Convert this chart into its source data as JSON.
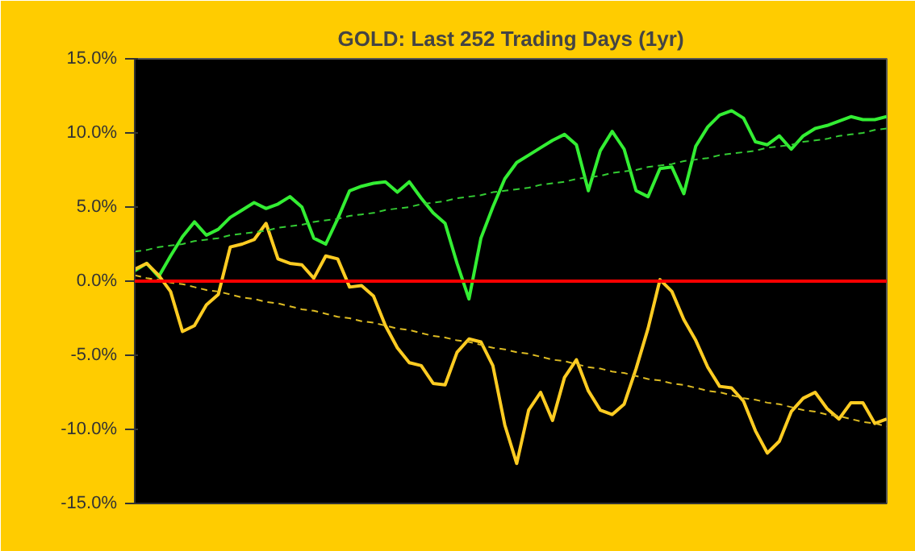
{
  "chart_data": {
    "type": "line",
    "title": "GOLD: Last 252 Trading Days (1yr)",
    "categories": [
      null,
      null,
      null,
      null,
      null,
      null,
      null,
      null,
      null,
      null,
      null,
      null,
      null,
      null,
      null,
      null,
      null,
      null,
      null,
      null,
      null,
      null,
      null,
      null,
      null,
      null,
      null,
      null,
      null,
      null,
      null,
      null,
      null,
      null,
      null,
      null,
      null,
      null,
      null,
      null,
      null,
      null,
      null,
      null,
      null,
      null,
      null,
      null,
      null,
      null,
      null,
      null,
      null,
      null,
      null,
      null,
      null,
      null,
      null,
      null,
      null,
      null,
      null,
      null
    ],
    "ylim": [
      -15,
      15
    ],
    "yticks": [
      {
        "value": -15,
        "label": "-15.0%"
      },
      {
        "value": -10,
        "label": "-10.0%"
      },
      {
        "value": -5,
        "label": "-5.0%"
      },
      {
        "value": 0,
        "label": "0.0%"
      },
      {
        "value": 5,
        "label": "5.0%"
      },
      {
        "value": 10,
        "label": "10.0%"
      },
      {
        "value": 15,
        "label": "15.0%"
      }
    ],
    "tick_labels": "y",
    "grid": false,
    "marker": "none",
    "ref_lines": [
      {
        "axis": "y",
        "value": 0,
        "color": "#ff0000",
        "line_style": "solid"
      }
    ],
    "series": [
      {
        "color": "#33ee33",
        "line_style": "solid",
        "values": [
          0.7,
          1.2,
          0.3,
          1.7,
          3.0,
          4.0,
          3.1,
          3.5,
          4.3,
          4.8,
          5.3,
          4.9,
          5.2,
          5.7,
          5.0,
          2.9,
          2.5,
          4.2,
          6.1,
          6.4,
          6.6,
          6.7,
          6.0,
          6.7,
          5.6,
          4.6,
          3.9,
          1.2,
          -1.2,
          2.9,
          5.0,
          6.9,
          8.0,
          8.5,
          9.0,
          9.5,
          9.9,
          9.2,
          6.1,
          8.8,
          10.1,
          8.9,
          6.1,
          5.7,
          7.6,
          7.7,
          5.9,
          9.1,
          10.4,
          11.2,
          11.5,
          11.0,
          9.4,
          9.2,
          9.8,
          8.9,
          9.8,
          10.3,
          10.5,
          10.8,
          11.1,
          10.9,
          10.9,
          11.1
        ]
      },
      {
        "color": "#ffcc22",
        "line_style": "solid",
        "values": [
          0.8,
          1.2,
          0.4,
          -0.7,
          -3.4,
          -3.0,
          -1.6,
          -0.9,
          2.3,
          2.5,
          2.8,
          3.9,
          1.5,
          1.2,
          1.1,
          0.2,
          1.7,
          1.5,
          -0.4,
          -0.3,
          -1.0,
          -3.0,
          -4.5,
          -5.5,
          -5.7,
          -6.9,
          -7.0,
          -4.8,
          -3.9,
          -4.1,
          -5.7,
          -9.7,
          -12.3,
          -8.7,
          -7.5,
          -9.4,
          -6.5,
          -5.3,
          -7.4,
          -8.7,
          -9.0,
          -8.3,
          -5.9,
          -3.2,
          0.1,
          -0.7,
          -2.6,
          -4.0,
          -5.8,
          -7.1,
          -7.2,
          -8.1,
          -10.1,
          -11.6,
          -10.8,
          -8.8,
          -7.9,
          -7.5,
          -8.6,
          -9.3,
          -8.2,
          -8.2,
          -9.6,
          -9.3
        ]
      },
      {
        "type": "line",
        "color": "#33cc33",
        "line_style": "dashed",
        "values": [
          2.0,
          2.1,
          2.3,
          2.4,
          2.5,
          2.7,
          2.8,
          2.9,
          3.1,
          3.2,
          3.3,
          3.4,
          3.6,
          3.7,
          3.8,
          4.0,
          4.1,
          4.2,
          4.4,
          4.5,
          4.6,
          4.8,
          4.9,
          5.0,
          5.2,
          5.3,
          5.4,
          5.6,
          5.7,
          5.8,
          6.0,
          6.1,
          6.2,
          6.3,
          6.5,
          6.6,
          6.7,
          6.9,
          7.0,
          7.1,
          7.3,
          7.4,
          7.5,
          7.7,
          7.8,
          7.9,
          8.1,
          8.2,
          8.3,
          8.5,
          8.6,
          8.7,
          8.8,
          9.0,
          9.1,
          9.2,
          9.4,
          9.5,
          9.6,
          9.8,
          9.9,
          10.0,
          10.2,
          10.3
        ]
      },
      {
        "type": "line",
        "color": "#ddbb22",
        "line_style": "dashed",
        "values": [
          0.4,
          0.2,
          0.1,
          -0.1,
          -0.2,
          -0.4,
          -0.6,
          -0.7,
          -0.9,
          -1.1,
          -1.2,
          -1.4,
          -1.5,
          -1.7,
          -1.9,
          -2.0,
          -2.2,
          -2.4,
          -2.5,
          -2.7,
          -2.8,
          -3.0,
          -3.2,
          -3.3,
          -3.5,
          -3.7,
          -3.8,
          -4.0,
          -4.1,
          -4.3,
          -4.5,
          -4.6,
          -4.8,
          -4.9,
          -5.1,
          -5.3,
          -5.4,
          -5.6,
          -5.8,
          -5.9,
          -6.1,
          -6.2,
          -6.4,
          -6.6,
          -6.7,
          -6.9,
          -7.0,
          -7.2,
          -7.4,
          -7.5,
          -7.7,
          -7.9,
          -8.0,
          -8.2,
          -8.3,
          -8.5,
          -8.7,
          -8.8,
          -9.0,
          -9.1,
          -9.3,
          -9.5,
          -9.6,
          -9.8
        ]
      }
    ]
  }
}
